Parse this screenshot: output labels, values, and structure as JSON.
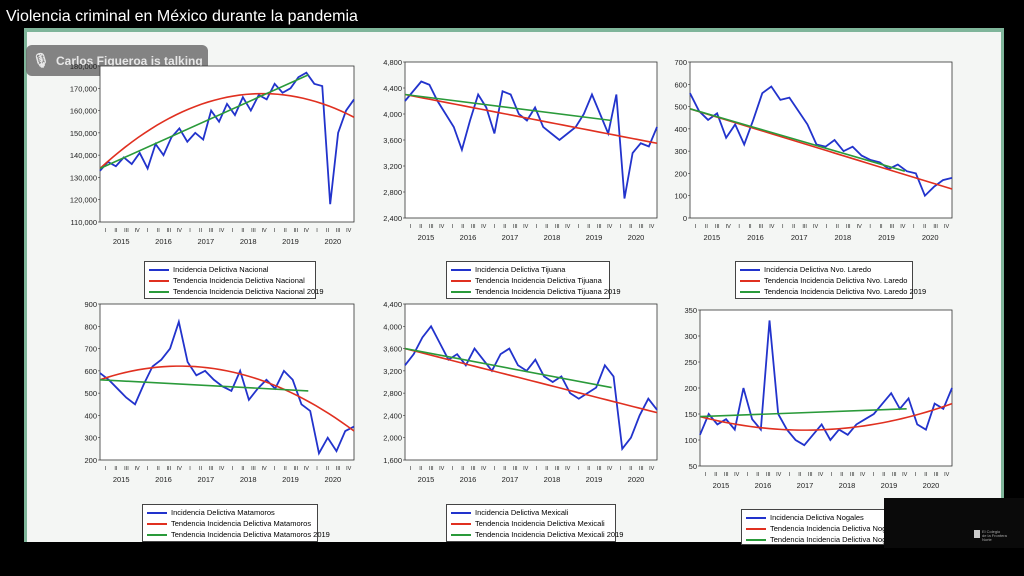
{
  "video": {
    "title": "Violencia criminal en México durante la pandemia",
    "talking_indicator": "Carlos Figueroa is talking",
    "webcam_logo_text": [
      "El Colegio",
      "de la Frontera Norte"
    ]
  },
  "colors": {
    "actual": "#2233cc",
    "trend": "#e03020",
    "trend2019": "#2a9a3a",
    "slide_border": "#7fb59a"
  },
  "charts": [
    {
      "id": "nacional",
      "yticks": [
        "180,000",
        "170,000",
        "160,000",
        "150,000",
        "140,000",
        "130,000",
        "120,000",
        "110,000"
      ],
      "years": [
        "2015",
        "2016",
        "2017",
        "2018",
        "2019",
        "2020"
      ],
      "legend": [
        "Incidencia Delictiva Nacional",
        "Tendencia Incidencia Delictiva Nacional",
        "Tendencia Incidencia Delictiva Nacional 2019"
      ]
    },
    {
      "id": "tijuana",
      "yticks": [
        "4,800",
        "4,400",
        "4,000",
        "3,600",
        "3,200",
        "2,800",
        "2,400"
      ],
      "years": [
        "2015",
        "2016",
        "2017",
        "2018",
        "2019",
        "2020"
      ],
      "legend": [
        "Incidencia Delictiva Tijuana",
        "Tendencia Incidencia Delictiva Tijuana",
        "Tendencia Incidencia Delictiva Tijuana 2019"
      ]
    },
    {
      "id": "laredo",
      "yticks": [
        "700",
        "600",
        "500",
        "400",
        "300",
        "200",
        "100",
        "0"
      ],
      "years": [
        "2015",
        "2016",
        "2017",
        "2018",
        "2019",
        "2020"
      ],
      "legend": [
        "Incidencia Delictiva Nvo. Laredo",
        "Tendencia Incidencia Delictiva Nvo. Laredo",
        "Tendencia Incidencia Delictiva Nvo. Laredo 2019"
      ]
    },
    {
      "id": "matamoros",
      "yticks": [
        "900",
        "800",
        "700",
        "600",
        "500",
        "400",
        "300",
        "200"
      ],
      "years": [
        "2015",
        "2016",
        "2017",
        "2018",
        "2019",
        "2020"
      ],
      "legend": [
        "Incidencia Delictiva Matamoros",
        "Tendencia Incidencia Delictiva Matamoros",
        "Tendencia Incidencia Delictiva Matamoros 2019"
      ]
    },
    {
      "id": "mexicali",
      "yticks": [
        "4,400",
        "4,000",
        "3,600",
        "3,200",
        "2,800",
        "2,400",
        "2,000",
        "1,600"
      ],
      "years": [
        "2015",
        "2016",
        "2017",
        "2018",
        "2019",
        "2020"
      ],
      "legend": [
        "Incidencia Delictiva Mexicali",
        "Tendencia Incidencia Delictiva Mexicali",
        "Tendencia Incidencia Delictiva Mexicali 2019"
      ]
    },
    {
      "id": "nogales",
      "yticks": [
        "350",
        "300",
        "250",
        "200",
        "150",
        "100",
        "50"
      ],
      "years": [
        "2015",
        "2016",
        "2017",
        "2018",
        "2019",
        "2020"
      ],
      "legend": [
        "Incidencia Delictiva Nogales",
        "Tendencia Incidencia Delictiva Nogales",
        "Tendencia Incidencia Delictiva Nogales 2019"
      ]
    }
  ],
  "chart_data": [
    {
      "type": "line",
      "title": "",
      "x": "quarters 2015-I to 2020-IV",
      "ylim": [
        110000,
        180000
      ],
      "series": [
        {
          "name": "Incidencia Delictiva Nacional",
          "values": [
            133000,
            137000,
            135000,
            139000,
            136000,
            141000,
            134000,
            145000,
            140000,
            148000,
            152000,
            146000,
            150000,
            147000,
            160000,
            155000,
            163000,
            158000,
            166000,
            160000,
            167000,
            165000,
            172000,
            168000,
            170000,
            175000,
            177000,
            172000,
            171000,
            118000,
            150000,
            160000,
            165000
          ]
        },
        {
          "name": "Tendencia Incidencia Delictiva Nacional",
          "values": [
            134000,
            166000,
            157000
          ]
        },
        {
          "name": "Tendencia Incidencia Delictiva Nacional 2019",
          "values": [
            134000,
            176000
          ]
        }
      ]
    },
    {
      "type": "line",
      "title": "",
      "x": "quarters 2015-I to 2020-IV",
      "ylim": [
        2400,
        4800
      ],
      "series": [
        {
          "name": "Incidencia Delictiva Tijuana",
          "values": [
            4200,
            4350,
            4500,
            4450,
            4200,
            4000,
            3800,
            3450,
            3900,
            4300,
            4100,
            3700,
            4350,
            4300,
            4000,
            3900,
            4100,
            3800,
            3700,
            3600,
            3700,
            3800,
            4000,
            4300,
            4000,
            3700,
            4300,
            2700,
            3400,
            3550,
            3500,
            3800
          ]
        },
        {
          "name": "Tendencia Incidencia Delictiva Tijuana",
          "values": [
            4300,
            3550
          ]
        },
        {
          "name": "Tendencia Incidencia Delictiva Tijuana 2019",
          "values": [
            4300,
            3900
          ]
        }
      ]
    },
    {
      "type": "line",
      "title": "",
      "x": "quarters 2015-I to 2020-IV",
      "ylim": [
        0,
        700
      ],
      "series": [
        {
          "name": "Incidencia Delictiva Nvo. Laredo",
          "values": [
            560,
            480,
            440,
            470,
            360,
            420,
            330,
            440,
            560,
            590,
            530,
            540,
            480,
            420,
            330,
            320,
            350,
            300,
            320,
            280,
            260,
            250,
            220,
            240,
            210,
            200,
            100,
            140,
            170,
            180
          ]
        },
        {
          "name": "Tendencia Incidencia Delictiva Nvo. Laredo",
          "values": [
            490,
            130
          ]
        },
        {
          "name": "Tendencia Incidencia Delictiva Nvo. Laredo 2019",
          "values": [
            490,
            210
          ]
        }
      ]
    },
    {
      "type": "line",
      "title": "",
      "x": "quarters 2015-I to 2020-IV",
      "ylim": [
        200,
        900
      ],
      "series": [
        {
          "name": "Incidencia Delictiva Matamoros",
          "values": [
            590,
            560,
            520,
            480,
            450,
            540,
            620,
            650,
            700,
            820,
            640,
            580,
            600,
            560,
            530,
            510,
            600,
            470,
            520,
            560,
            520,
            600,
            560,
            450,
            420,
            230,
            300,
            240,
            330,
            350
          ]
        },
        {
          "name": "Tendencia Incidencia Delictiva Matamoros",
          "values": [
            560,
            600,
            330
          ]
        },
        {
          "name": "Tendencia Incidencia Delictiva Matamoros 2019",
          "values": [
            560,
            510
          ]
        }
      ]
    },
    {
      "type": "line",
      "title": "",
      "x": "quarters 2015-I to 2020-IV",
      "ylim": [
        1600,
        4400
      ],
      "series": [
        {
          "name": "Incidencia Delictiva Mexicali",
          "values": [
            3300,
            3500,
            3800,
            4000,
            3700,
            3400,
            3500,
            3300,
            3600,
            3400,
            3200,
            3500,
            3600,
            3300,
            3200,
            3400,
            3100,
            3000,
            3100,
            2800,
            2700,
            2800,
            2900,
            3300,
            3100,
            1800,
            2000,
            2400,
            2700,
            2500
          ]
        },
        {
          "name": "Tendencia Incidencia Delictiva Mexicali",
          "values": [
            3600,
            2450
          ]
        },
        {
          "name": "Tendencia Incidencia Delictiva Mexicali 2019",
          "values": [
            3600,
            2900
          ]
        }
      ]
    },
    {
      "type": "line",
      "title": "",
      "x": "quarters 2015-I to 2020-IV",
      "ylim": [
        50,
        350
      ],
      "series": [
        {
          "name": "Incidencia Delictiva Nogales",
          "values": [
            110,
            150,
            130,
            140,
            120,
            200,
            140,
            120,
            330,
            150,
            120,
            100,
            90,
            110,
            130,
            100,
            120,
            110,
            130,
            140,
            150,
            170,
            190,
            160,
            180,
            130,
            120,
            170,
            160,
            200
          ]
        },
        {
          "name": "Tendencia Incidencia Delictiva Nogales",
          "values": [
            145,
            120,
            170
          ]
        },
        {
          "name": "Tendencia Incidencia Delictiva Nogales 2019",
          "values": [
            145,
            160
          ]
        }
      ]
    }
  ]
}
